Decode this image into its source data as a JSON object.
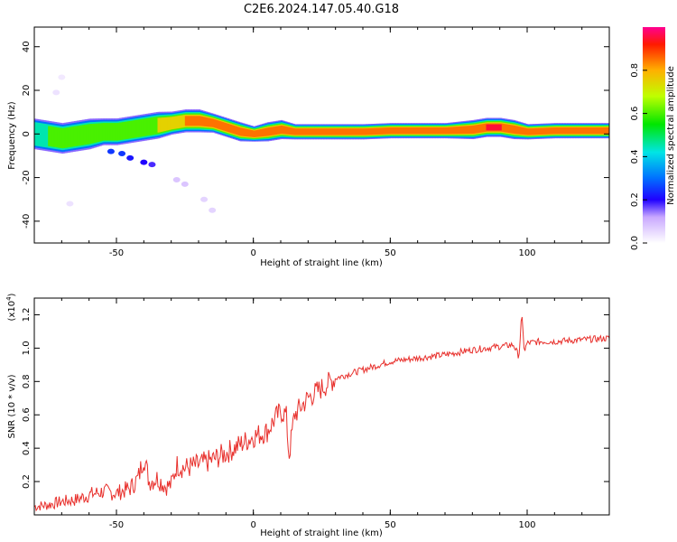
{
  "title": "C2E6.2024.147.05.40.G18",
  "colors": {
    "snr_line": "#e8302c",
    "axis": "#000000"
  },
  "chart_data": [
    {
      "type": "heatmap",
      "title": "C2E6.2024.147.05.40.G18",
      "xlabel": "Height of straight line (km)",
      "ylabel": "Frequency (Hz)",
      "xlim": [
        -80,
        130
      ],
      "ylim": [
        -50,
        49
      ],
      "xticks": [
        "-50",
        "0",
        "50",
        "100"
      ],
      "yticks": [
        "-40",
        "-20",
        "0",
        "20",
        "40"
      ],
      "colorbar": {
        "label": "Normalized spectral amplitude",
        "range": [
          0,
          1
        ],
        "ticks": [
          "0.0",
          "0.2",
          "0.4",
          "0.6",
          "0.8"
        ]
      },
      "ridge": {
        "x": [
          -80,
          -75,
          -70,
          -65,
          -60,
          -55,
          -50,
          -45,
          -40,
          -35,
          -30,
          -25,
          -20,
          -15,
          -10,
          -5,
          0,
          5,
          10,
          15,
          20,
          30,
          40,
          50,
          60,
          70,
          80,
          85,
          90,
          95,
          100,
          110,
          120,
          130
        ],
        "freq": [
          0,
          -1,
          -2,
          -1,
          0,
          1,
          1,
          2,
          3,
          4,
          5,
          6,
          6,
          5,
          3,
          1,
          0,
          1,
          2,
          1,
          1,
          1,
          1,
          1.5,
          1.5,
          1.5,
          2,
          3,
          3,
          2,
          1,
          1.5,
          1.5,
          1.5
        ],
        "width": [
          4,
          4,
          4,
          4,
          4,
          3.5,
          3.5,
          3.5,
          3.5,
          3.5,
          3,
          3,
          3,
          2.5,
          2.5,
          2.5,
          2,
          2.5,
          2.5,
          2,
          2,
          2,
          2,
          2,
          2,
          2,
          2.5,
          2.5,
          2.5,
          2.5,
          2,
          2,
          2,
          2
        ],
        "amp": [
          0.55,
          0.6,
          0.6,
          0.6,
          0.6,
          0.65,
          0.65,
          0.7,
          0.7,
          0.75,
          0.8,
          0.85,
          0.9,
          0.85,
          0.85,
          0.85,
          0.9,
          0.85,
          0.9,
          0.9,
          0.9,
          0.9,
          0.9,
          0.9,
          0.9,
          0.9,
          0.9,
          0.95,
          0.95,
          0.9,
          0.9,
          0.9,
          0.9,
          0.9
        ]
      },
      "blobs": [
        {
          "x": -52,
          "freq": -8,
          "amp": 0.25
        },
        {
          "x": -48,
          "freq": -9,
          "amp": 0.25
        },
        {
          "x": -45,
          "freq": -11,
          "amp": 0.22
        },
        {
          "x": -40,
          "freq": -13,
          "amp": 0.2
        },
        {
          "x": -37,
          "freq": -14,
          "amp": 0.18
        },
        {
          "x": -28,
          "freq": -21,
          "amp": 0.08
        },
        {
          "x": -25,
          "freq": -23,
          "amp": 0.08
        },
        {
          "x": -18,
          "freq": -30,
          "amp": 0.06
        },
        {
          "x": -15,
          "freq": -35,
          "amp": 0.06
        },
        {
          "x": -67,
          "freq": -32,
          "amp": 0.04
        },
        {
          "x": -72,
          "freq": 19,
          "amp": 0.04
        },
        {
          "x": -70,
          "freq": 26,
          "amp": 0.03
        }
      ]
    },
    {
      "type": "line",
      "xlabel": "Height of straight line (km)",
      "ylabel": "SNR (10 * v/v)",
      "y_multiplier": "(x10",
      "y_exponent": "4",
      "y_multiplier_close": ")",
      "xlim": [
        -80,
        130
      ],
      "ylim": [
        0,
        1.3
      ],
      "xticks": [
        "-50",
        "0",
        "50",
        "100"
      ],
      "yticks": [
        "0.2",
        "0.4",
        "0.6",
        "0.8",
        "1.0",
        "1.2"
      ],
      "series": [
        {
          "x": [
            -80,
            -75,
            -70,
            -65,
            -60,
            -55,
            -50,
            -45,
            -42,
            -40,
            -38,
            -35,
            -32,
            -30,
            -28,
            -25,
            -20,
            -15,
            -10,
            -5,
            0,
            5,
            8,
            10,
            12,
            13,
            15,
            18,
            20,
            25,
            30,
            40,
            50,
            60,
            70,
            80,
            85,
            90,
            95,
            97,
            98,
            99,
            100,
            105,
            110,
            120,
            130
          ],
          "y": [
            0.05,
            0.06,
            0.08,
            0.09,
            0.12,
            0.14,
            0.13,
            0.16,
            0.22,
            0.35,
            0.2,
            0.22,
            0.17,
            0.18,
            0.3,
            0.28,
            0.3,
            0.33,
            0.37,
            0.42,
            0.47,
            0.5,
            0.58,
            0.62,
            0.6,
            0.35,
            0.6,
            0.66,
            0.7,
            0.76,
            0.82,
            0.87,
            0.92,
            0.94,
            0.96,
            0.99,
            1.0,
            1.01,
            1.02,
            0.95,
            1.2,
            0.98,
            1.03,
            1.04,
            1.04,
            1.05,
            1.06
          ]
        }
      ]
    }
  ]
}
